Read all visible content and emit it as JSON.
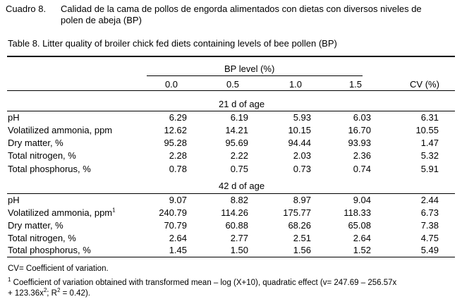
{
  "caption_es": {
    "label": "Cuadro 8.",
    "line1": "Calidad de la cama de pollos de engorda alimentados con dietas con diversos niveles de",
    "line2": "polen de abeja (BP)"
  },
  "caption_en": "Table 8. Litter quality of broiler chick fed diets containing levels of bee pollen (BP)",
  "table": {
    "group_header": "BP level (%)",
    "columns": [
      "0.0",
      "0.5",
      "1.0",
      "1.5",
      "CV (%)"
    ],
    "sections": [
      {
        "title": "21 d of age",
        "rows": [
          {
            "label": "pH",
            "values": [
              "6.29",
              "6.19",
              "5.93",
              "6.03",
              "6.31"
            ]
          },
          {
            "label": "Volatilized ammonia, ppm",
            "values": [
              "12.62",
              "14.21",
              "10.15",
              "16.70",
              "10.55"
            ]
          },
          {
            "label": "Dry matter, %",
            "values": [
              "95.28",
              "95.69",
              "94.44",
              "93.93",
              "1.47"
            ]
          },
          {
            "label": "Total nitrogen, %",
            "values": [
              "2.28",
              "2.22",
              "2.03",
              "2.36",
              "5.32"
            ]
          },
          {
            "label": "Total phosphorus, %",
            "values": [
              "0.78",
              "0.75",
              "0.73",
              "0.74",
              "5.91"
            ]
          }
        ]
      },
      {
        "title": "42 d of age",
        "rows": [
          {
            "label": "pH",
            "values": [
              "9.07",
              "8.82",
              "8.97",
              "9.04",
              "2.44"
            ]
          },
          {
            "label": "Volatilized ammonia, ppm",
            "sup": "1",
            "values": [
              "240.79",
              "114.26",
              "175.77",
              "118.33",
              "6.73"
            ]
          },
          {
            "label": "Dry matter, %",
            "values": [
              "70.79",
              "60.88",
              "68.26",
              "65.08",
              "7.38"
            ]
          },
          {
            "label": "Total nitrogen, %",
            "values": [
              "2.64",
              "2.77",
              "2.51",
              "2.64",
              "4.75"
            ]
          },
          {
            "label": "Total phosphorus, %",
            "values": [
              "1.45",
              "1.50",
              "1.56",
              "1.52",
              "5.49"
            ]
          }
        ]
      }
    ]
  },
  "footnotes": {
    "cv": "CV= Coefficient of variation.",
    "note1_mark": "1",
    "note1_line1": "Coefficient of variation obtained with transformed mean – log (X+10), quadratic effect (v= 247.69 – 256.57x",
    "note1_line2_a": "+ 123.36x",
    "note1_line2_sup": "2",
    "note1_line2_b": "; R",
    "note1_line2_sup2": "2",
    "note1_line2_c": " = 0.42)."
  }
}
